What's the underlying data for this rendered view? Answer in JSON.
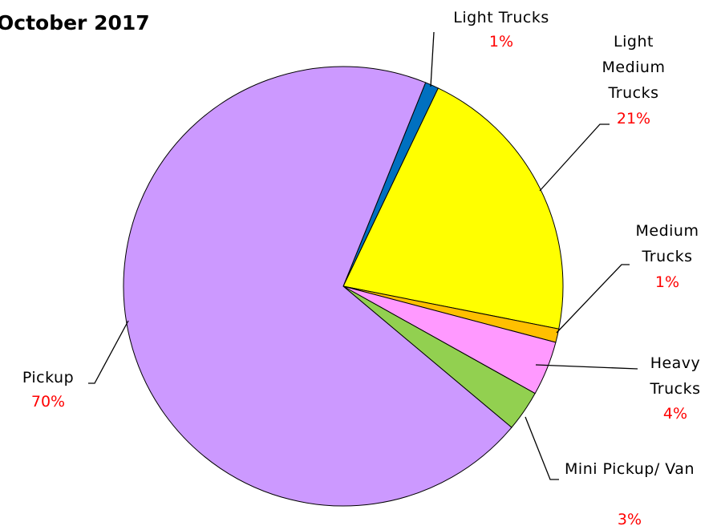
{
  "chart_data": {
    "type": "pie",
    "title": "October 2017",
    "categories": [
      "Light Trucks",
      "Light Medium Trucks",
      "Medium Trucks",
      "Heavy Trucks",
      "Mini Pickup/ Van",
      "Pickup"
    ],
    "values": [
      1,
      21,
      1,
      4,
      3,
      70
    ],
    "value_labels": [
      "1%",
      "21%",
      "1%",
      "4%",
      "3%",
      "70%"
    ],
    "colors": [
      "#0070c0",
      "#ffff00",
      "#ffc000",
      "#ff99ff",
      "#92d050",
      "#cc99ff"
    ]
  }
}
